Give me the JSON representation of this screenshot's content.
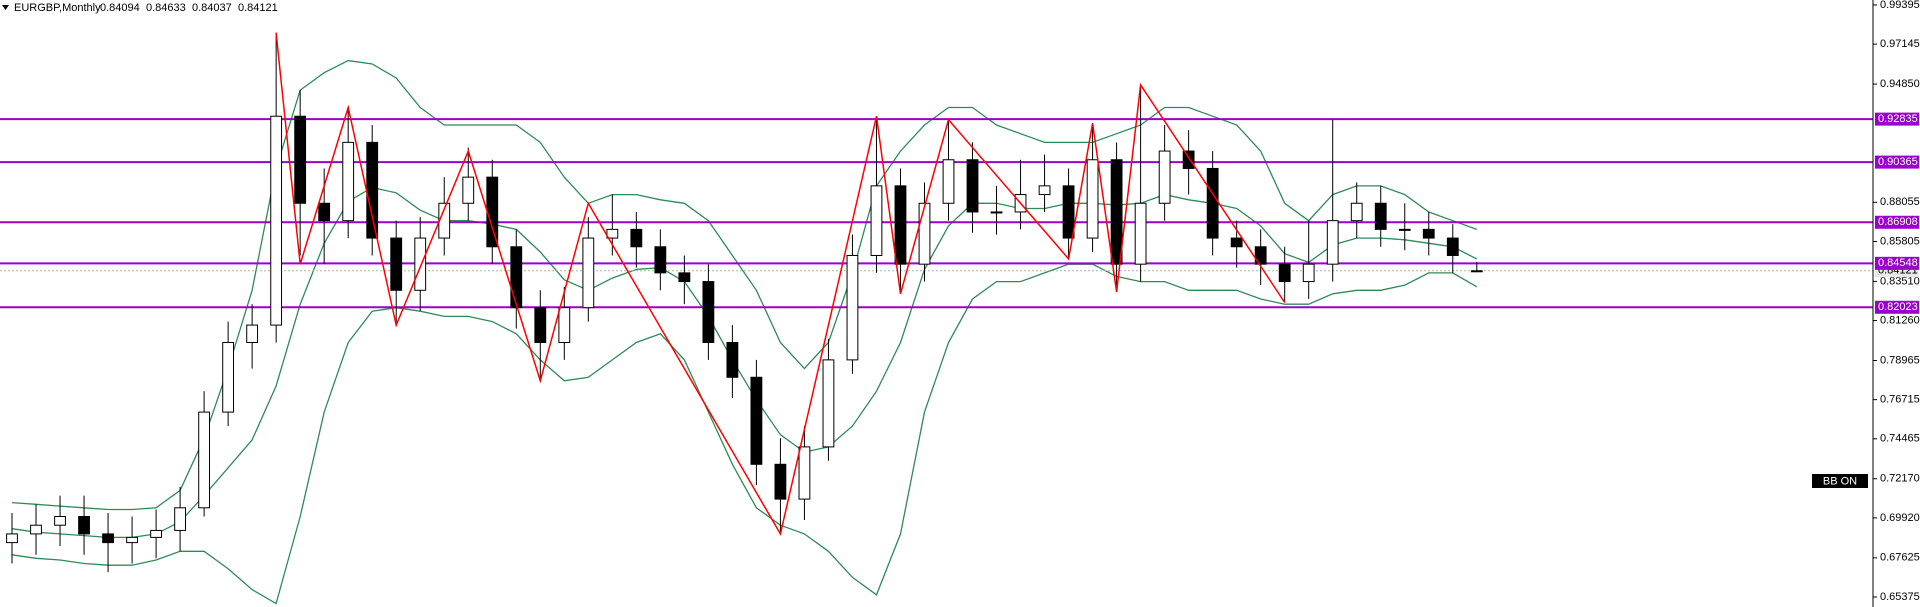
{
  "chart_data": {
    "type": "candlestick",
    "title": "EURGBP,Monthly",
    "ohlc_readout": [
      0.84094,
      0.84633,
      0.84037,
      0.84121
    ],
    "indicator_label": "BB ON",
    "up_color": "#ffffff",
    "down_color": "#000000",
    "open": [
      0.685,
      0.69,
      0.695,
      0.7,
      0.69,
      0.685,
      0.688,
      0.692,
      0.705,
      0.76,
      0.8,
      0.81,
      0.93,
      0.88,
      0.87,
      0.915,
      0.86,
      0.83,
      0.86,
      0.88,
      0.895,
      0.855,
      0.82,
      0.8,
      0.82,
      0.86,
      0.865,
      0.855,
      0.84,
      0.835,
      0.8,
      0.78,
      0.73,
      0.71,
      0.74,
      0.79,
      0.85,
      0.89,
      0.845,
      0.88,
      0.905,
      0.875,
      0.875,
      0.885,
      0.89,
      0.86,
      0.905,
      0.845,
      0.88,
      0.91,
      0.9,
      0.86,
      0.855,
      0.845,
      0.835,
      0.845,
      0.87,
      0.88,
      0.865,
      0.865,
      0.86,
      0.84094
    ],
    "high": [
      0.702,
      0.707,
      0.712,
      0.712,
      0.702,
      0.7,
      0.704,
      0.717,
      0.772,
      0.812,
      0.822,
      0.978,
      0.945,
      0.9,
      0.935,
      0.925,
      0.87,
      0.872,
      0.895,
      0.912,
      0.905,
      0.865,
      0.83,
      0.832,
      0.872,
      0.885,
      0.875,
      0.865,
      0.85,
      0.845,
      0.81,
      0.79,
      0.745,
      0.752,
      0.802,
      0.862,
      0.93,
      0.9,
      0.892,
      0.928,
      0.915,
      0.89,
      0.905,
      0.908,
      0.9,
      0.926,
      0.915,
      0.948,
      0.925,
      0.922,
      0.91,
      0.87,
      0.865,
      0.855,
      0.87,
      0.928,
      0.892,
      0.89,
      0.88,
      0.875,
      0.868,
      0.84633
    ],
    "low": [
      0.673,
      0.678,
      0.683,
      0.678,
      0.668,
      0.673,
      0.676,
      0.68,
      0.7,
      0.752,
      0.785,
      0.8,
      0.85,
      0.845,
      0.86,
      0.85,
      0.81,
      0.818,
      0.85,
      0.87,
      0.845,
      0.808,
      0.778,
      0.79,
      0.812,
      0.85,
      0.843,
      0.83,
      0.822,
      0.79,
      0.768,
      0.718,
      0.69,
      0.698,
      0.732,
      0.782,
      0.84,
      0.828,
      0.835,
      0.87,
      0.863,
      0.862,
      0.865,
      0.875,
      0.848,
      0.852,
      0.829,
      0.835,
      0.87,
      0.885,
      0.85,
      0.843,
      0.833,
      0.823,
      0.825,
      0.835,
      0.86,
      0.855,
      0.853,
      0.85,
      0.84,
      0.84037
    ],
    "close": [
      0.69,
      0.695,
      0.7,
      0.69,
      0.685,
      0.688,
      0.692,
      0.705,
      0.76,
      0.8,
      0.81,
      0.93,
      0.88,
      0.87,
      0.915,
      0.86,
      0.83,
      0.86,
      0.88,
      0.895,
      0.855,
      0.82,
      0.8,
      0.82,
      0.86,
      0.865,
      0.855,
      0.84,
      0.835,
      0.8,
      0.78,
      0.73,
      0.71,
      0.74,
      0.79,
      0.85,
      0.89,
      0.845,
      0.88,
      0.905,
      0.875,
      0.875,
      0.885,
      0.89,
      0.86,
      0.905,
      0.845,
      0.88,
      0.91,
      0.9,
      0.86,
      0.855,
      0.845,
      0.835,
      0.845,
      0.87,
      0.88,
      0.865,
      0.865,
      0.86,
      0.85,
      0.84121
    ],
    "bands": {
      "color": "#2e8b57",
      "upper": [
        0.708,
        0.707,
        0.706,
        0.705,
        0.704,
        0.704,
        0.705,
        0.715,
        0.745,
        0.785,
        0.83,
        0.9,
        0.945,
        0.955,
        0.962,
        0.96,
        0.952,
        0.935,
        0.925,
        0.925,
        0.925,
        0.925,
        0.915,
        0.895,
        0.88,
        0.885,
        0.885,
        0.882,
        0.88,
        0.87,
        0.85,
        0.83,
        0.8,
        0.785,
        0.8,
        0.84,
        0.89,
        0.91,
        0.925,
        0.935,
        0.935,
        0.925,
        0.92,
        0.915,
        0.915,
        0.915,
        0.92,
        0.925,
        0.935,
        0.935,
        0.93,
        0.925,
        0.91,
        0.88,
        0.87,
        0.885,
        0.89,
        0.89,
        0.885,
        0.875,
        0.87,
        0.865
      ],
      "middle": [
        0.693,
        0.691,
        0.69,
        0.689,
        0.688,
        0.688,
        0.69,
        0.697,
        0.712,
        0.728,
        0.744,
        0.775,
        0.822,
        0.857,
        0.881,
        0.889,
        0.886,
        0.876,
        0.87,
        0.87,
        0.868,
        0.865,
        0.852,
        0.836,
        0.83,
        0.837,
        0.842,
        0.843,
        0.835,
        0.815,
        0.79,
        0.767,
        0.747,
        0.737,
        0.74,
        0.752,
        0.772,
        0.8,
        0.842,
        0.867,
        0.88,
        0.88,
        0.877,
        0.877,
        0.88,
        0.88,
        0.879,
        0.88,
        0.885,
        0.882,
        0.88,
        0.877,
        0.867,
        0.851,
        0.846,
        0.856,
        0.86,
        0.86,
        0.859,
        0.857,
        0.855,
        0.848
      ],
      "lower": [
        0.678,
        0.676,
        0.675,
        0.673,
        0.672,
        0.672,
        0.675,
        0.68,
        0.68,
        0.67,
        0.658,
        0.65,
        0.7,
        0.76,
        0.8,
        0.818,
        0.82,
        0.818,
        0.815,
        0.815,
        0.812,
        0.805,
        0.79,
        0.778,
        0.78,
        0.79,
        0.8,
        0.805,
        0.79,
        0.76,
        0.73,
        0.705,
        0.695,
        0.69,
        0.68,
        0.665,
        0.655,
        0.69,
        0.76,
        0.8,
        0.825,
        0.835,
        0.835,
        0.84,
        0.845,
        0.845,
        0.838,
        0.835,
        0.835,
        0.83,
        0.83,
        0.83,
        0.825,
        0.822,
        0.822,
        0.828,
        0.83,
        0.83,
        0.833,
        0.84,
        0.84,
        0.832
      ]
    },
    "zigzag": {
      "color": "#ff0000",
      "x": [
        11,
        12,
        14,
        16,
        19,
        22,
        24,
        32,
        36,
        37,
        39,
        44,
        45,
        46,
        47,
        53
      ],
      "values": [
        0.978,
        0.845,
        0.935,
        0.81,
        0.91,
        0.778,
        0.88,
        0.69,
        0.93,
        0.828,
        0.928,
        0.848,
        0.926,
        0.829,
        0.948,
        0.823
      ]
    },
    "levels": {
      "color": "#9900cc",
      "values": [
        0.92835,
        0.90365,
        0.86908,
        0.84548,
        0.82023
      ]
    },
    "xlim": [
      -0.5,
      77.5
    ],
    "ylim": [
      0.648,
      0.9968
    ],
    "yticks": [
      0.99395,
      0.97145,
      {
        "value": 0.9485,
        "label": "0.94850"
      },
      0.88055,
      0.85805,
      {
        "value": 0.8351,
        "label": "0.83510"
      },
      {
        "value": 0.8126,
        "label": "0.81260"
      },
      0.78965,
      0.76715,
      0.74465,
      {
        "value": 0.7217,
        "label": "0.72170"
      },
      {
        "value": 0.6992,
        "label": "0.69920"
      },
      0.67625,
      0.65375
    ],
    "grid": false
  }
}
